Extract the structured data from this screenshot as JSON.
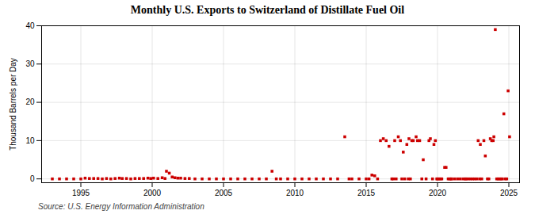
{
  "chart_data": {
    "type": "scatter",
    "title": "Monthly U.S. Exports to Switzerland of Distillate Fuel Oil",
    "ylabel": "Thousand Barrels per Day",
    "source": "Source: U.S. Energy Information Administration",
    "color": "#cc0000",
    "marker": "square",
    "grid": true,
    "xlim": [
      1992.25,
      2025.75
    ],
    "ylim": [
      -1,
      40
    ],
    "xticks": [
      1995,
      2000,
      2005,
      2010,
      2015,
      2020,
      2025
    ],
    "yticks": [
      0,
      10,
      20,
      30,
      40
    ],
    "x": [
      1993.0,
      1993.5,
      1994.0,
      1994.5,
      1995.0,
      1995.3,
      1995.6,
      1995.9,
      1996.2,
      1996.5,
      1996.8,
      1997.1,
      1997.4,
      1997.7,
      1997.9,
      1998.2,
      1998.5,
      1998.8,
      1999.1,
      1999.4,
      1999.7,
      1999.9,
      2000.1,
      2000.4,
      2000.7,
      2000.9,
      2001.0,
      2001.2,
      2001.4,
      2001.6,
      2001.8,
      2002.0,
      2002.3,
      2002.6,
      2003.0,
      2003.5,
      2004.0,
      2004.5,
      2005.0,
      2005.5,
      2006.0,
      2006.5,
      2007.0,
      2007.5,
      2008.0,
      2008.4,
      2008.7,
      2009.0,
      2009.5,
      2010.0,
      2010.5,
      2011.0,
      2011.5,
      2012.0,
      2012.5,
      2013.0,
      2013.5,
      2013.8,
      2014.0,
      2014.5,
      2015.0,
      2015.2,
      2015.4,
      2015.6,
      2015.8,
      2016.0,
      2016.2,
      2016.4,
      2016.6,
      2016.8,
      2016.9,
      2017.0,
      2017.1,
      2017.25,
      2017.4,
      2017.5,
      2017.6,
      2017.7,
      2017.85,
      2017.95,
      2018.0,
      2018.1,
      2018.2,
      2018.3,
      2018.5,
      2018.6,
      2018.75,
      2018.9,
      2019.0,
      2019.2,
      2019.4,
      2019.5,
      2019.65,
      2019.75,
      2019.85,
      2019.95,
      2020.0,
      2020.1,
      2020.2,
      2020.3,
      2020.5,
      2020.6,
      2020.75,
      2020.85,
      2020.95,
      2021.0,
      2021.2,
      2021.4,
      2021.6,
      2021.8,
      2021.95,
      2022.0,
      2022.15,
      2022.3,
      2022.45,
      2022.6,
      2022.75,
      2022.85,
      2022.95,
      2023.0,
      2023.1,
      2023.25,
      2023.35,
      2023.5,
      2023.6,
      2023.7,
      2023.8,
      2023.9,
      2023.95,
      2024.05,
      2024.15,
      2024.25,
      2024.35,
      2024.45,
      2024.55,
      2024.65,
      2024.75,
      2024.85,
      2024.95,
      2025.05
    ],
    "values": [
      0.0,
      0.0,
      0.0,
      0.0,
      0.0,
      0.2,
      0.1,
      0.1,
      0.1,
      0.0,
      0.1,
      0.0,
      0.1,
      0.2,
      0.1,
      0.1,
      0.0,
      0.1,
      0.1,
      0.1,
      0.2,
      0.1,
      0.2,
      0.1,
      0.3,
      0.1,
      2.0,
      1.5,
      0.5,
      0.3,
      0.2,
      0.2,
      0.1,
      0.1,
      0.0,
      0.0,
      0.0,
      0.0,
      0.0,
      0.0,
      0.0,
      0.0,
      0.0,
      0.0,
      0.0,
      2.0,
      0.0,
      0.0,
      0.0,
      0.0,
      0.0,
      0.0,
      0.0,
      0.0,
      0.0,
      0.0,
      11.0,
      0.0,
      0.0,
      0.0,
      0.0,
      0.0,
      1.0,
      0.8,
      0.0,
      10.0,
      10.5,
      10.0,
      8.5,
      0.0,
      0.0,
      10.0,
      0.0,
      11.0,
      10.0,
      0.0,
      7.0,
      0.0,
      9.0,
      0.0,
      10.5,
      0.0,
      10.0,
      10.0,
      11.0,
      10.0,
      10.0,
      0.0,
      5.0,
      0.0,
      10.0,
      10.5,
      0.0,
      9.0,
      10.0,
      0.0,
      0.0,
      0.0,
      0.0,
      0.0,
      3.0,
      3.0,
      0.0,
      0.0,
      0.0,
      0.0,
      0.0,
      0.0,
      0.0,
      0.0,
      0.0,
      0.0,
      0.0,
      0.0,
      0.0,
      0.0,
      0.0,
      10.0,
      0.0,
      9.0,
      0.0,
      10.0,
      6.0,
      0.0,
      0.0,
      10.5,
      10.0,
      10.0,
      11.0,
      39.0,
      0.0,
      0.0,
      0.0,
      0.0,
      0.0,
      17.0,
      0.0,
      0.0,
      23.0,
      11.0
    ]
  }
}
